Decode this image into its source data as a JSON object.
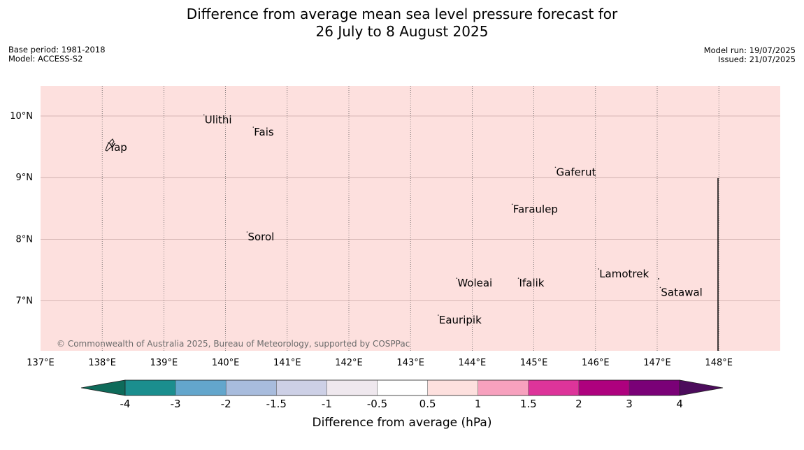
{
  "title": {
    "line1": "Difference from average mean sea level pressure forecast for",
    "line2": "26 July to 8 August 2025"
  },
  "meta_left": {
    "base_period": "Base period: 1981-2018",
    "model": "Model: ACCESS-S2"
  },
  "meta_right": {
    "model_run": "Model run: 19/07/2025",
    "issued": "Issued: 21/07/2025"
  },
  "map": {
    "fill_color": "#fde0de",
    "lon_range": [
      137,
      149
    ],
    "lat_range": [
      6.2,
      10.5
    ],
    "lon_ticks": [
      "137°E",
      "138°E",
      "139°E",
      "140°E",
      "141°E",
      "142°E",
      "143°E",
      "144°E",
      "145°E",
      "146°E",
      "147°E",
      "148°E"
    ],
    "lat_ticks": [
      "10°N",
      "9°N",
      "8°N",
      "7°N"
    ],
    "copyright": "© Commonwealth of Australia 2025, Bureau of Meteorology, supported by COSPPac",
    "places": [
      {
        "name": "Yap",
        "lon": 138.1,
        "lat": 9.5
      },
      {
        "name": "Ulithi",
        "lon": 139.65,
        "lat": 9.95
      },
      {
        "name": "Fais",
        "lon": 140.45,
        "lat": 9.75
      },
      {
        "name": "Gaferut",
        "lon": 145.35,
        "lat": 9.1
      },
      {
        "name": "Faraulep",
        "lon": 144.65,
        "lat": 8.5
      },
      {
        "name": "Sorol",
        "lon": 140.35,
        "lat": 8.05
      },
      {
        "name": "Lamotrek",
        "lon": 146.05,
        "lat": 7.45
      },
      {
        "name": "Woleai",
        "lon": 143.75,
        "lat": 7.3
      },
      {
        "name": "Ifalik",
        "lon": 144.75,
        "lat": 7.3
      },
      {
        "name": "Satawal",
        "lon": 147.05,
        "lat": 7.15
      },
      {
        "name": "Eauripik",
        "lon": 143.45,
        "lat": 6.7
      }
    ]
  },
  "colorbar": {
    "title": "Difference from average (hPa)",
    "ticks": [
      "-4",
      "-3",
      "-2",
      "-1.5",
      "-1",
      "-0.5",
      "0.5",
      "1",
      "1.5",
      "2",
      "3",
      "4"
    ],
    "under_color": "#0e6b5a",
    "over_color": "#4c0c5c",
    "colors": [
      "#1b8e8e",
      "#63a6cc",
      "#a8bcdd",
      "#cdd0e6",
      "#efe8ee",
      "#ffffff",
      "#fde0de",
      "#f7a1be",
      "#dd349a",
      "#ae017e",
      "#7a0177"
    ]
  }
}
